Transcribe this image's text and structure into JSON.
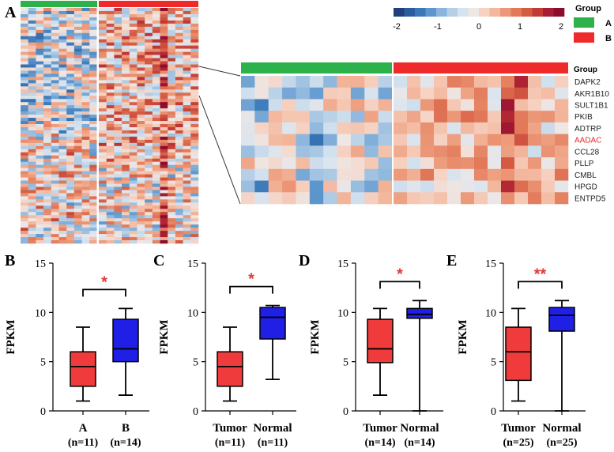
{
  "figure": {
    "panel_letters": [
      "A",
      "B",
      "C",
      "D",
      "E"
    ]
  },
  "colors": {
    "group_a": "#2db14a",
    "group_b": "#ee2a2a",
    "box_red": "#ef3b3b",
    "box_blue": "#1f1fe6",
    "star": "#e23a3a",
    "gene_highlight": "#e52b2b"
  },
  "heatmap": {
    "legend_title": "Group",
    "groups": [
      "A",
      "B"
    ],
    "scale_ticks": [
      "-2",
      "-1",
      "0",
      "1",
      "2"
    ],
    "scale_colors": [
      "#213f7a",
      "#2b5c9d",
      "#3a78b8",
      "#5e97cd",
      "#8bb5dc",
      "#b5cfe6",
      "#d6e3ef",
      "#ede7e6",
      "#f6d2c2",
      "#f3b79d",
      "#ec9878",
      "#e27a5a",
      "#d45a42",
      "#c23a35",
      "#a81d33",
      "#8c0b2f"
    ],
    "zoom_group_label": "Group",
    "genes": [
      "DAPK2",
      "AKR1B10",
      "SULT1B1",
      "PKIB",
      "ADTRP",
      "AADAC",
      "CCL28",
      "PLLP",
      "CMBL",
      "HPGD",
      "ENTPD5"
    ],
    "highlight_gene": "AADAC"
  },
  "chart_data": [
    {
      "type": "box",
      "panel": "B",
      "ylabel": "FPKM",
      "ylim": [
        0,
        15
      ],
      "yticks": [
        "0",
        "5",
        "10",
        "15"
      ],
      "categories": [
        "A",
        "B"
      ],
      "category_n": [
        "(n=11)",
        "(n=14)"
      ],
      "boxes": [
        {
          "name": "A",
          "min": 1.0,
          "q1": 2.5,
          "median": 4.5,
          "q3": 6.0,
          "max": 8.5
        },
        {
          "name": "B",
          "min": 1.6,
          "q1": 5.0,
          "median": 6.3,
          "q3": 9.3,
          "max": 10.4
        }
      ],
      "significance": "*"
    },
    {
      "type": "box",
      "panel": "C",
      "ylabel": "FPKM",
      "ylim": [
        0,
        15
      ],
      "yticks": [
        "0",
        "5",
        "10",
        "15"
      ],
      "categories": [
        "Tumor",
        "Normal"
      ],
      "category_n": [
        "(n=11)",
        "(n=11)"
      ],
      "boxes": [
        {
          "name": "Tumor",
          "min": 1.0,
          "q1": 2.5,
          "median": 4.5,
          "q3": 6.0,
          "max": 8.5
        },
        {
          "name": "Normal",
          "min": 3.2,
          "q1": 7.3,
          "median": 9.5,
          "q3": 10.5,
          "max": 10.7
        }
      ],
      "significance": "*"
    },
    {
      "type": "box",
      "panel": "D",
      "ylabel": "FPKM",
      "ylim": [
        0,
        15
      ],
      "yticks": [
        "0",
        "5",
        "10",
        "15"
      ],
      "categories": [
        "Tumor",
        "Normal"
      ],
      "category_n": [
        "(n=14)",
        "(n=14)"
      ],
      "boxes": [
        {
          "name": "Tumor",
          "min": 1.6,
          "q1": 4.9,
          "median": 6.3,
          "q3": 9.3,
          "max": 10.4
        },
        {
          "name": "Normal",
          "min": 0.0,
          "q1": 9.4,
          "median": 9.8,
          "q3": 10.4,
          "max": 11.2
        }
      ],
      "significance": "*"
    },
    {
      "type": "box",
      "panel": "E",
      "ylabel": "FPKM",
      "ylim": [
        0,
        15
      ],
      "yticks": [
        "0",
        "5",
        "10",
        "15"
      ],
      "categories": [
        "Tumor",
        "Normal"
      ],
      "category_n": [
        "(n=25)",
        "(n=25)"
      ],
      "boxes": [
        {
          "name": "Tumor",
          "min": 1.0,
          "q1": 3.1,
          "median": 6.0,
          "q3": 8.5,
          "max": 10.4
        },
        {
          "name": "Normal",
          "min": 0.0,
          "q1": 8.1,
          "median": 9.7,
          "q3": 10.5,
          "max": 11.2
        }
      ],
      "significance": "**"
    }
  ]
}
